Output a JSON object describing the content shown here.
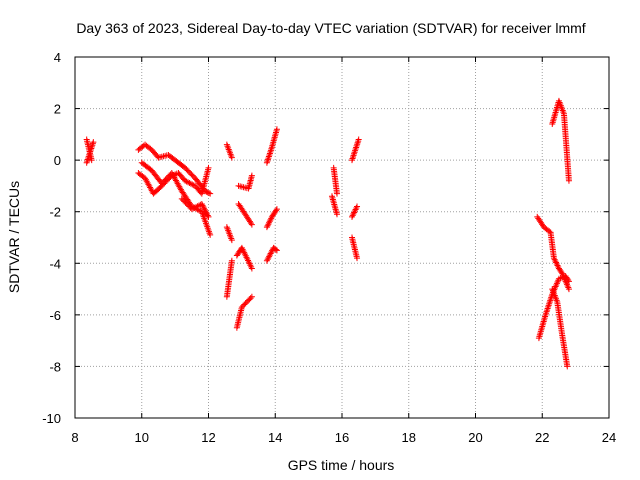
{
  "chart_data": {
    "type": "scatter",
    "title": "Day 363 of 2023, Sidereal Day-to-day VTEC variation (SDTVAR) for receiver lmmf",
    "xlabel": "GPS time / hours",
    "ylabel": "SDTVAR / TECUs",
    "xlim": [
      8,
      24
    ],
    "ylim": [
      -10,
      4
    ],
    "xticks": [
      "8",
      "10",
      "12",
      "14",
      "16",
      "18",
      "20",
      "22",
      "24"
    ],
    "yticks": [
      "4",
      "2",
      "0",
      "-2",
      "-4",
      "-6",
      "-8",
      "-10"
    ],
    "grid": true,
    "marker": "+",
    "colors": {
      "series": "#ff0000",
      "grid": "#a0a0a0",
      "axis": "#000000"
    },
    "segments": [
      {
        "x": [
          8.35,
          8.5
        ],
        "y": [
          0.8,
          0.0
        ]
      },
      {
        "x": [
          8.35,
          8.55
        ],
        "y": [
          -0.1,
          0.7
        ]
      },
      {
        "x": [
          9.9,
          10.1,
          10.3,
          10.5,
          10.8,
          11.0,
          11.3,
          11.6,
          11.9,
          12.05
        ],
        "y": [
          0.4,
          0.6,
          0.4,
          0.1,
          0.2,
          0.0,
          -0.3,
          -0.7,
          -1.2,
          -1.3
        ]
      },
      {
        "x": [
          9.9,
          10.1,
          10.35,
          10.6,
          10.9,
          11.1,
          11.3,
          11.6,
          11.8,
          12.0
        ],
        "y": [
          -0.5,
          -0.7,
          -1.3,
          -1.0,
          -0.6,
          -0.5,
          -0.8,
          -1.0,
          -1.3,
          -0.3
        ]
      },
      {
        "x": [
          10.0,
          10.3,
          10.6,
          10.9,
          11.2,
          11.5,
          11.8,
          12.05
        ],
        "y": [
          -0.1,
          -0.4,
          -0.9,
          -0.5,
          -1.2,
          -1.8,
          -2.0,
          -2.9
        ]
      },
      {
        "x": [
          11.2,
          11.5,
          11.8,
          12.0
        ],
        "y": [
          -1.5,
          -1.9,
          -1.7,
          -2.2
        ]
      },
      {
        "x": [
          12.55,
          12.7
        ],
        "y": [
          0.6,
          0.1
        ]
      },
      {
        "x": [
          12.55,
          12.7
        ],
        "y": [
          -2.6,
          -3.1
        ]
      },
      {
        "x": [
          12.55,
          12.7
        ],
        "y": [
          -5.3,
          -3.9
        ]
      },
      {
        "x": [
          12.9,
          13.2,
          13.3
        ],
        "y": [
          -1.0,
          -1.1,
          -0.6
        ]
      },
      {
        "x": [
          12.9,
          13.1,
          13.3
        ],
        "y": [
          -1.7,
          -2.1,
          -2.5
        ]
      },
      {
        "x": [
          12.85,
          13.0,
          13.3
        ],
        "y": [
          -3.7,
          -3.4,
          -4.2
        ]
      },
      {
        "x": [
          12.85,
          13.0,
          13.3
        ],
        "y": [
          -6.5,
          -5.7,
          -5.3
        ]
      },
      {
        "x": [
          13.75,
          13.9,
          14.05
        ],
        "y": [
          -0.1,
          0.5,
          1.2
        ]
      },
      {
        "x": [
          13.75,
          13.9,
          14.05
        ],
        "y": [
          -2.6,
          -2.2,
          -1.9
        ]
      },
      {
        "x": [
          13.75,
          13.95,
          14.05
        ],
        "y": [
          -3.9,
          -3.4,
          -3.5
        ]
      },
      {
        "x": [
          15.75,
          15.85
        ],
        "y": [
          -0.3,
          -1.3
        ]
      },
      {
        "x": [
          15.7,
          15.85
        ],
        "y": [
          -1.4,
          -2.1
        ]
      },
      {
        "x": [
          16.3,
          16.5
        ],
        "y": [
          0.0,
          0.8
        ]
      },
      {
        "x": [
          16.3,
          16.45
        ],
        "y": [
          -2.2,
          -1.8
        ]
      },
      {
        "x": [
          16.3,
          16.45
        ],
        "y": [
          -3.0,
          -3.8
        ]
      },
      {
        "x": [
          22.3,
          22.5,
          22.65,
          22.8
        ],
        "y": [
          1.4,
          2.3,
          1.8,
          -0.8
        ]
      },
      {
        "x": [
          21.85,
          22.05,
          22.25,
          22.35,
          22.5,
          22.6,
          22.8
        ],
        "y": [
          -2.2,
          -2.6,
          -2.8,
          -3.8,
          -4.2,
          -4.4,
          -5.0
        ]
      },
      {
        "x": [
          21.9,
          22.1,
          22.3,
          22.5,
          22.7,
          22.8
        ],
        "y": [
          -6.9,
          -6.0,
          -5.2,
          -4.6,
          -4.5,
          -4.7
        ]
      },
      {
        "x": [
          22.3,
          22.45,
          22.6,
          22.75
        ],
        "y": [
          -5.0,
          -5.5,
          -6.8,
          -8.0
        ]
      }
    ]
  }
}
